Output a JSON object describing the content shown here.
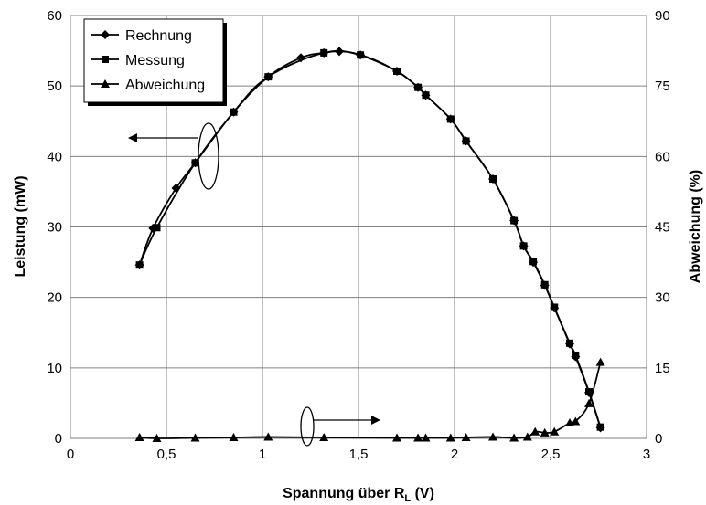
{
  "chart_data": {
    "type": "line",
    "xlabel": "Spannung über R",
    "xlabel_sub": "L",
    "xlabel_unit": " (V)",
    "ylabel": "Leistung (mW)",
    "y2label": "Abweichung (%)",
    "xlim": [
      0,
      3
    ],
    "ylim": [
      0,
      60
    ],
    "y2lim": [
      0,
      90
    ],
    "x_ticks": [
      {
        "v": 0,
        "label": "0"
      },
      {
        "v": 0.5,
        "label": "0,5"
      },
      {
        "v": 1,
        "label": "1"
      },
      {
        "v": 1.5,
        "label": "1,5"
      },
      {
        "v": 2,
        "label": "2"
      },
      {
        "v": 2.5,
        "label": "2,5"
      },
      {
        "v": 3,
        "label": "3"
      }
    ],
    "y_ticks": [
      {
        "v": 0,
        "label": "0"
      },
      {
        "v": 10,
        "label": "10"
      },
      {
        "v": 20,
        "label": "20"
      },
      {
        "v": 30,
        "label": "30"
      },
      {
        "v": 40,
        "label": "40"
      },
      {
        "v": 50,
        "label": "50"
      },
      {
        "v": 60,
        "label": "60"
      }
    ],
    "y2_ticks": [
      {
        "v": 0,
        "label": "0"
      },
      {
        "v": 15,
        "label": "15"
      },
      {
        "v": 30,
        "label": "30"
      },
      {
        "v": 45,
        "label": "45"
      },
      {
        "v": 60,
        "label": "60"
      },
      {
        "v": 75,
        "label": "75"
      },
      {
        "v": 90,
        "label": "90"
      }
    ],
    "grid": true,
    "legend_position": "top-left",
    "series": [
      {
        "name": "Rechnung",
        "marker": "diamond",
        "axis": "left",
        "x": [
          0.36,
          0.43,
          0.55,
          0.65,
          0.85,
          1.03,
          1.2,
          1.32,
          1.4,
          1.51,
          1.7,
          1.81,
          1.85,
          1.98,
          2.06,
          2.2,
          2.31,
          2.36,
          2.41,
          2.47,
          2.52,
          2.6,
          2.63,
          2.7,
          2.76
        ],
        "y": [
          24.6,
          29.8,
          35.5,
          39.1,
          46.3,
          51.3,
          54.0,
          54.7,
          54.9,
          54.4,
          52.1,
          49.8,
          48.7,
          45.3,
          42.2,
          36.8,
          30.9,
          27.3,
          25.0,
          21.7,
          18.5,
          13.4,
          11.6,
          6.5,
          1.5
        ]
      },
      {
        "name": "Messung",
        "marker": "square",
        "axis": "left",
        "x": [
          0.36,
          0.45,
          0.65,
          0.85,
          1.03,
          1.32,
          1.51,
          1.7,
          1.81,
          1.85,
          1.98,
          2.06,
          2.2,
          2.31,
          2.36,
          2.41,
          2.47,
          2.52,
          2.6,
          2.63,
          2.7,
          2.76
        ],
        "y": [
          24.6,
          29.9,
          39.1,
          46.3,
          51.3,
          54.7,
          54.4,
          52.1,
          49.8,
          48.7,
          45.3,
          42.2,
          36.8,
          30.9,
          27.3,
          25.1,
          21.8,
          18.6,
          13.5,
          11.8,
          6.6,
          1.6
        ]
      },
      {
        "name": "Abweichung",
        "marker": "triangle",
        "axis": "right",
        "x": [
          0.36,
          0.45,
          0.65,
          0.85,
          1.03,
          1.32,
          1.7,
          1.81,
          1.85,
          1.98,
          2.06,
          2.2,
          2.31,
          2.38,
          2.42,
          2.47,
          2.52,
          2.6,
          2.63,
          2.7,
          2.76
        ],
        "y": [
          0.2,
          0.0,
          0.1,
          0.2,
          0.3,
          0.2,
          0.1,
          0.1,
          0.1,
          0.1,
          0.2,
          0.3,
          0.1,
          0.3,
          1.4,
          1.2,
          1.4,
          3.3,
          3.6,
          7.4,
          16.2
        ]
      }
    ]
  }
}
